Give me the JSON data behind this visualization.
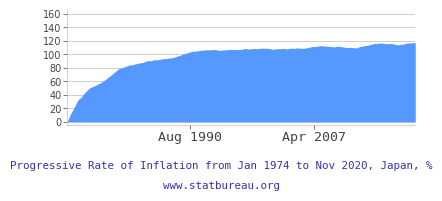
{
  "title_line1": "Progressive Rate of Inflation from Jan 1974 to Nov 2020, Japan, %",
  "title_line2": "www.statbureau.org",
  "title_color": "#3333aa",
  "fill_color": "#5599ff",
  "fill_alpha": 1.0,
  "bg_color": "#ffffff",
  "grid_color": "#bbbbbb",
  "tick_label_color": "#444444",
  "xticklabels": [
    "Aug 1990",
    "Apr 2007"
  ],
  "xtick_positions": [
    1990.583,
    2007.25
  ],
  "yticks": [
    0,
    20,
    40,
    60,
    80,
    100,
    120,
    140,
    160
  ],
  "ylim": [
    -4,
    166
  ],
  "start_year": 1974.0,
  "end_year": 2020.917,
  "title_fontsize": 7.8,
  "tick_fontsize": 7.0,
  "xtick_fontsize": 9.5
}
